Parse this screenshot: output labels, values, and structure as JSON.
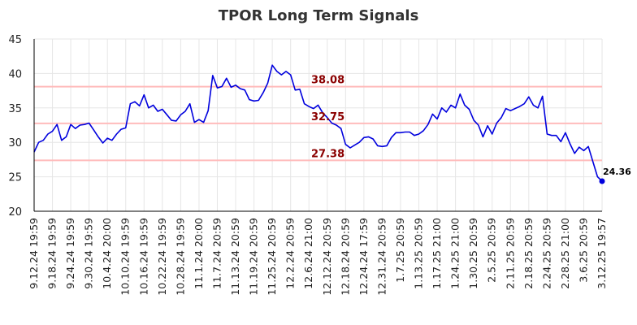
{
  "chart_data": {
    "type": "line",
    "title": "TPOR Long Term Signals",
    "xlabel": "",
    "ylabel": "",
    "ylim": [
      20,
      45
    ],
    "y_ticks": [
      20,
      25,
      30,
      35,
      40,
      45
    ],
    "grid": true,
    "x_tick_labels": [
      "9.12.24 19:59",
      "9.18.24 19:59",
      "9.24.24 19:59",
      "9.30.24 19:59",
      "10.4.24 20:00",
      "10.10.24 19:59",
      "10.16.24 19:59",
      "10.22.24 19:59",
      "10.28.24 19:59",
      "11.1.24 20:00",
      "11.7.24 20:59",
      "11.13.24 20:59",
      "11.19.24 20:59",
      "11.25.24 20:59",
      "12.2.24 20:59",
      "12.6.24 21:00",
      "12.12.24 20:59",
      "12.18.24 20:59",
      "12.24.24 17:59",
      "12.31.24 20:59",
      "1.7.25 20:59",
      "1.13.25 20:59",
      "1.17.25 21:00",
      "1.24.25 21:00",
      "1.30.25 20:59",
      "2.5.25 20:59",
      "2.11.25 20:59",
      "2.18.25 20:59",
      "2.24.25 20:59",
      "2.28.25 21:00",
      "3.6.25 20:59",
      "3.12.25 19:57"
    ],
    "series": [
      {
        "color": "#0000dd",
        "values": [
          28.6,
          30.0,
          30.3,
          31.2,
          31.6,
          32.6,
          30.3,
          30.8,
          32.6,
          32.0,
          32.5,
          32.6,
          32.8,
          31.8,
          30.8,
          29.9,
          30.6,
          30.3,
          31.2,
          31.9,
          32.1,
          35.6,
          35.9,
          35.3,
          36.9,
          35.0,
          35.4,
          34.5,
          34.8,
          34.0,
          33.2,
          33.1,
          34.0,
          34.5,
          35.6,
          32.9,
          33.3,
          32.9,
          34.6,
          39.7,
          37.9,
          38.1,
          39.3,
          38.0,
          38.3,
          37.8,
          37.6,
          36.2,
          36.0,
          36.1,
          37.2,
          38.6,
          41.2,
          40.3,
          39.8,
          40.3,
          39.8,
          37.6,
          37.7,
          35.6,
          35.2,
          34.9,
          35.4,
          34.3,
          33.6,
          32.8,
          32.5,
          32.0,
          29.7,
          29.2,
          29.6,
          30.0,
          30.7,
          30.8,
          30.5,
          29.5,
          29.4,
          29.5,
          30.7,
          31.4,
          31.4,
          31.5,
          31.5,
          31.0,
          31.2,
          31.7,
          32.6,
          34.1,
          33.4,
          35.0,
          34.4,
          35.4,
          35.0,
          37.0,
          35.4,
          34.8,
          33.2,
          32.5,
          30.8,
          32.4,
          31.2,
          32.8,
          33.6,
          34.9,
          34.6,
          34.9,
          35.2,
          35.6,
          36.6,
          35.4,
          35.0,
          36.7,
          31.2,
          31.0,
          31.0,
          30.1,
          31.4,
          29.8,
          28.4,
          29.3,
          28.8,
          29.4,
          27.2,
          25.0,
          24.36
        ]
      }
    ],
    "levels": [
      {
        "value": 38.08,
        "label": "38.08"
      },
      {
        "value": 32.75,
        "label": "32.75"
      },
      {
        "value": 27.38,
        "label": "27.38"
      }
    ],
    "last_point": {
      "value": 24.36,
      "label": "24.36"
    },
    "colors": {
      "line": "#0000dd",
      "level_line": "#ffbbbb",
      "level_label": "#8b0000",
      "grid": "#e6e6e6",
      "axis": "#000000"
    }
  }
}
